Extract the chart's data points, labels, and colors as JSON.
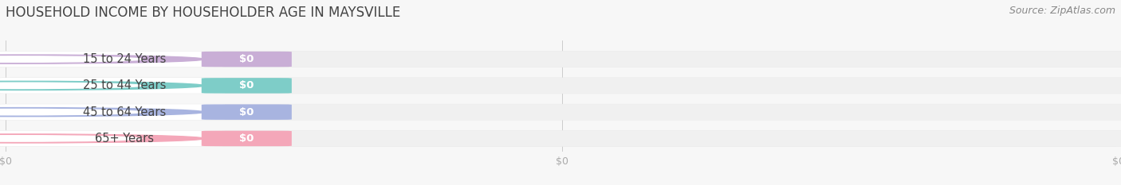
{
  "title": "HOUSEHOLD INCOME BY HOUSEHOLDER AGE IN MAYSVILLE",
  "source": "Source: ZipAtlas.com",
  "categories": [
    "15 to 24 Years",
    "25 to 44 Years",
    "45 to 64 Years",
    "65+ Years"
  ],
  "values": [
    0,
    0,
    0,
    0
  ],
  "bar_colors": [
    "#c9aed6",
    "#7ecdc8",
    "#a8b4e0",
    "#f4a7b9"
  ],
  "background_color": "#f7f7f7",
  "bar_bg_color": "#e8e8e8",
  "bar_bg_color2": "#f0f0f0",
  "title_color": "#444444",
  "label_text_color": "#444444",
  "tick_color": "#aaaaaa",
  "source_color": "#888888",
  "title_fontsize": 12,
  "label_fontsize": 10.5,
  "value_fontsize": 9.5,
  "source_fontsize": 9,
  "tick_fontsize": 9
}
